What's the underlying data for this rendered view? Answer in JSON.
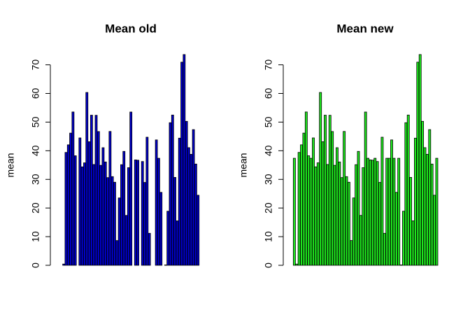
{
  "chart_data": [
    {
      "type": "bar",
      "title": "Mean old",
      "y_label": "mean",
      "color": "#0000cd",
      "ylim": [
        0,
        76.5
      ],
      "yticks": [
        0,
        10,
        20,
        30,
        40,
        50,
        60,
        70
      ],
      "values": [
        null,
        0.44,
        39.42,
        42.07,
        46.16,
        53.54,
        38.25,
        null,
        44.48,
        34.38,
        35.78,
        60.35,
        43.15,
        52.42,
        35.2,
        52.38,
        46.71,
        34.92,
        41.07,
        36.09,
        30.63,
        46.74,
        30.97,
        29.01,
        8.65,
        23.53,
        35.14,
        39.78,
        17.42,
        34.09,
        53.52,
        null,
        36.81,
        36.7,
        null,
        36.25,
        28.94,
        44.73,
        11.18,
        null,
        null,
        43.78,
        37.38,
        25.47,
        null,
        0.14,
        18.89,
        49.79,
        52.47,
        30.7,
        15.53,
        44.4,
        70.93,
        73.59,
        50.27,
        41.09,
        38.76,
        47.38,
        35.36,
        24.47,
        null
      ]
    },
    {
      "type": "bar",
      "title": "Mean new",
      "y_label": "mean",
      "color": "#1ee61e",
      "ylim": [
        0,
        76.5
      ],
      "yticks": [
        0,
        10,
        20,
        30,
        40,
        50,
        60,
        70
      ],
      "values": [
        37.38,
        0.44,
        39.42,
        42.07,
        46.16,
        53.54,
        38.25,
        37.38,
        44.48,
        34.38,
        35.78,
        60.35,
        43.15,
        52.42,
        35.2,
        52.38,
        46.71,
        34.92,
        41.07,
        36.09,
        30.63,
        46.74,
        30.97,
        29.01,
        8.65,
        23.53,
        35.14,
        39.78,
        17.42,
        34.09,
        53.52,
        37.38,
        36.81,
        36.7,
        37.38,
        36.25,
        28.94,
        44.73,
        11.18,
        37.38,
        37.38,
        43.78,
        37.38,
        25.47,
        37.38,
        0.14,
        18.89,
        49.79,
        52.47,
        30.7,
        15.53,
        44.4,
        70.93,
        73.59,
        50.27,
        41.09,
        38.76,
        47.38,
        35.36,
        24.47,
        37.38
      ]
    }
  ]
}
